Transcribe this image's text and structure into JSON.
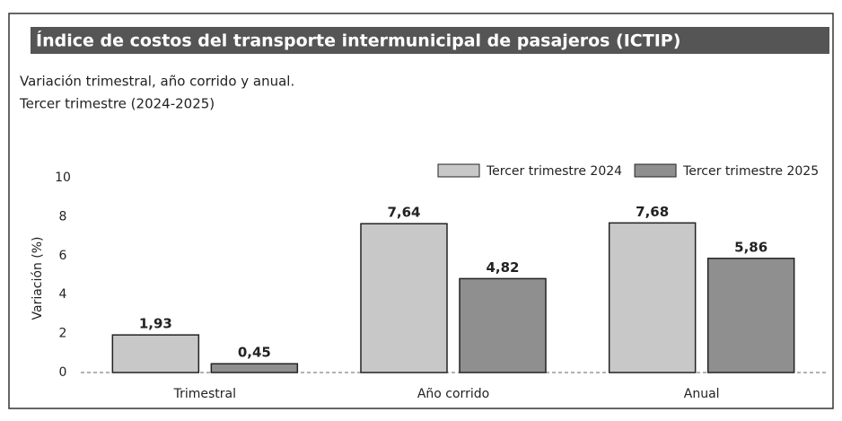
{
  "chart_data": {
    "type": "bar",
    "title": "Índice de costos del transporte intermunicipal de pasajeros (ICTIP)",
    "subtitle": [
      "Variación trimestral, año corrido y anual.",
      "Tercer trimestre (2024-2025)"
    ],
    "y_label": "Variación (%)",
    "categories": [
      "Trimestral",
      "Año corrido",
      "Anual"
    ],
    "series": [
      {
        "name": "Tercer trimestre 2024",
        "color": "#c8c8c8",
        "values": [
          1.93,
          7.64,
          7.68
        ],
        "value_labels": [
          "1,93",
          "7,64",
          "7,68"
        ]
      },
      {
        "name": "Tercer trimestre 2025",
        "color": "#8f8f8f",
        "values": [
          0.45,
          4.82,
          5.86
        ],
        "value_labels": [
          "0,45",
          "4,82",
          "5,86"
        ]
      }
    ],
    "ylim": [
      0,
      10
    ],
    "yticks": [
      0,
      2,
      4,
      6,
      8,
      10
    ],
    "grid": false,
    "legend": "top-right"
  }
}
